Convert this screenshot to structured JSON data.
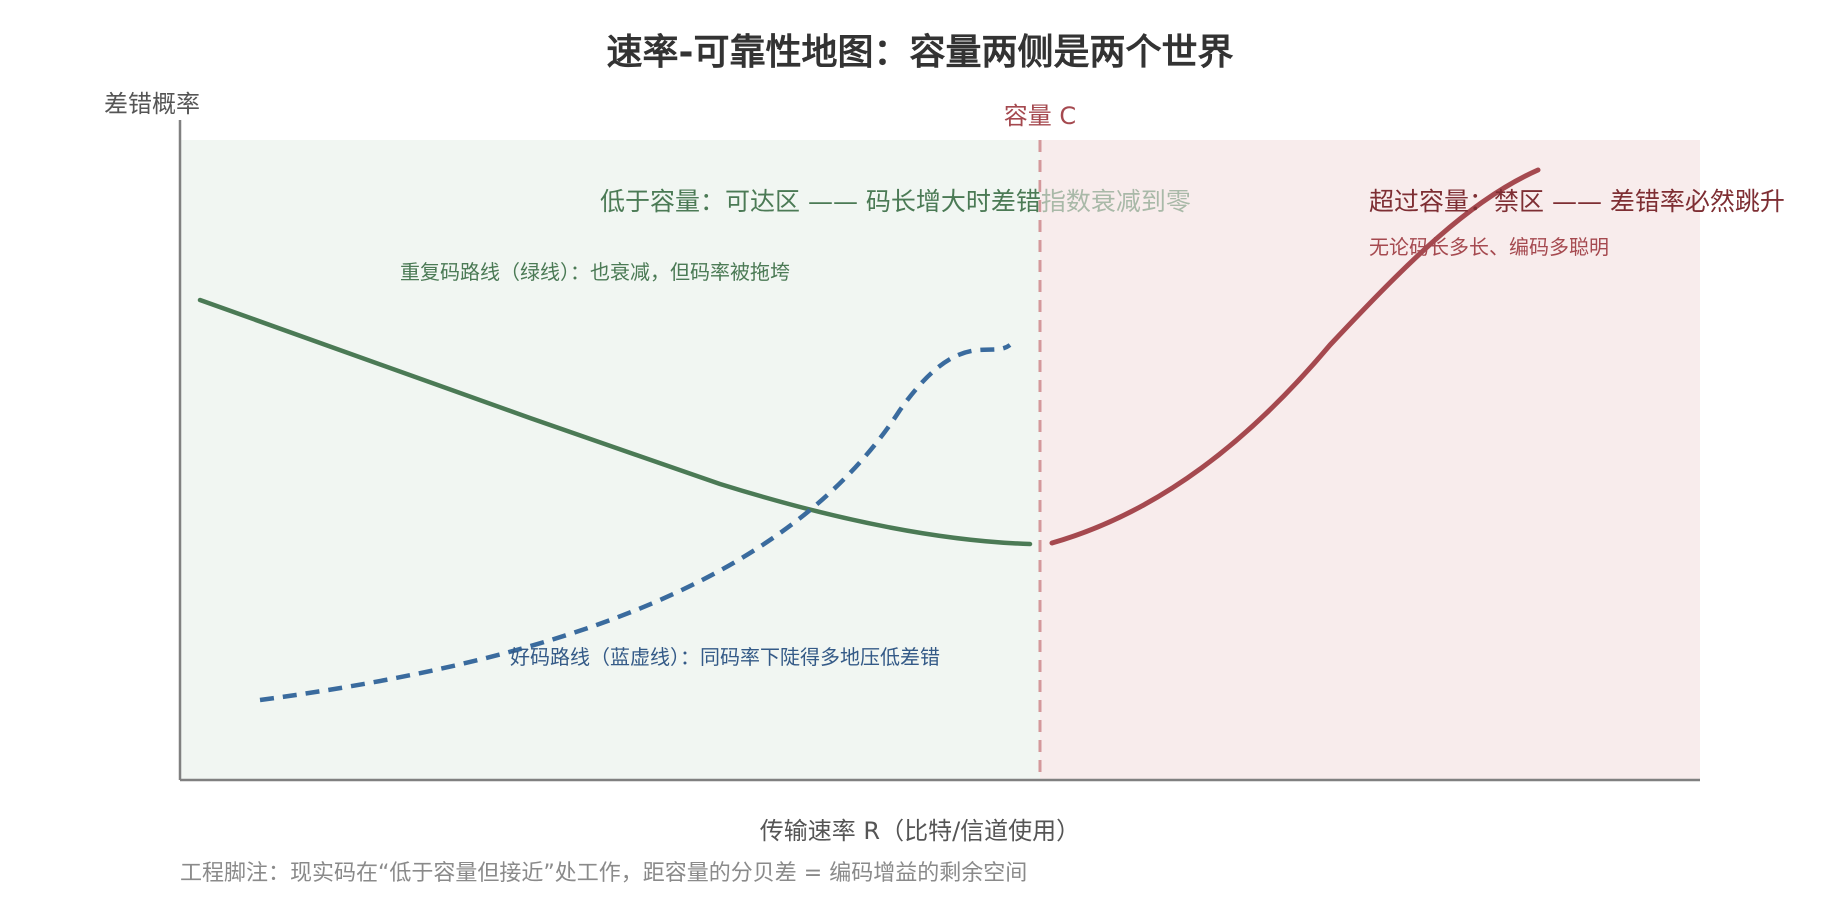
{
  "title": "速率-可靠性地图：容量两侧是两个世界",
  "y_axis_label": "差错概率",
  "x_axis_label": "传输速率 R（比特/信道使用）",
  "capacity_label": "容量 C",
  "zones": {
    "achievable": {
      "title": "低于容量：可达区 —— 码长增大时差错指数衰减到零",
      "color": "#f1f6f2"
    },
    "forbidden": {
      "title": "超过容量：禁区 —— 差错率必然跳升",
      "subtitle": "无论码长多长、编码多聪明",
      "color": "#f8ecec"
    }
  },
  "curves": {
    "repetition": {
      "label": "重复码路线（绿线）：也衰减，但码率被拖垮",
      "color": "#4b7a55"
    },
    "good_code": {
      "label": "好码路线（蓝虚线）：同码率下陡得多地压低差错",
      "color": "#3a6b9e"
    },
    "beyond_capacity": {
      "color": "#a5494f"
    }
  },
  "footnote": "工程脚注：现实码在“低于容量但接近”处工作，距容量的分贝差 = 编码增益的剩余空间"
}
